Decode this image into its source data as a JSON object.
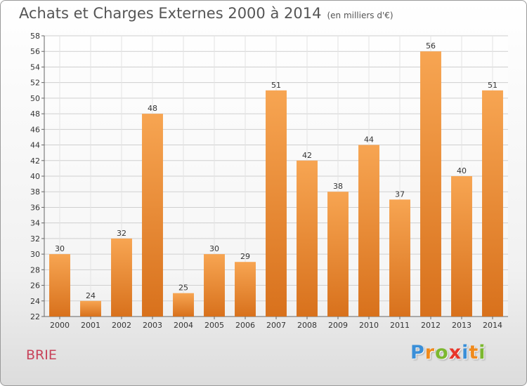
{
  "chart_data": {
    "type": "bar",
    "title": "Achats et Charges Externes 2000 à 2014",
    "subtitle": "(en milliers d'€)",
    "categories": [
      "2000",
      "2001",
      "2002",
      "2003",
      "2004",
      "2005",
      "2006",
      "2007",
      "2008",
      "2009",
      "2010",
      "2011",
      "2012",
      "2013",
      "2014"
    ],
    "values": [
      30,
      24,
      32,
      48,
      25,
      30,
      29,
      51,
      42,
      38,
      44,
      37,
      56,
      40,
      51
    ],
    "ylim": [
      22,
      58
    ],
    "yticks": [
      22,
      24,
      26,
      28,
      30,
      32,
      34,
      36,
      38,
      40,
      42,
      44,
      46,
      48,
      50,
      52,
      54,
      56,
      58
    ],
    "grid": true,
    "legend": "none",
    "bar_color": "#f0943a"
  },
  "town": "BRIE",
  "logo": {
    "text": "Proxiti",
    "letters": [
      "P",
      "r",
      "o",
      "x",
      "i",
      "t",
      "i"
    ],
    "colors": [
      "#3a8fd8",
      "#f08a1c",
      "#7cb82f",
      "#e8362a",
      "#3a8fd8",
      "#f08a1c",
      "#7cb82f"
    ]
  }
}
